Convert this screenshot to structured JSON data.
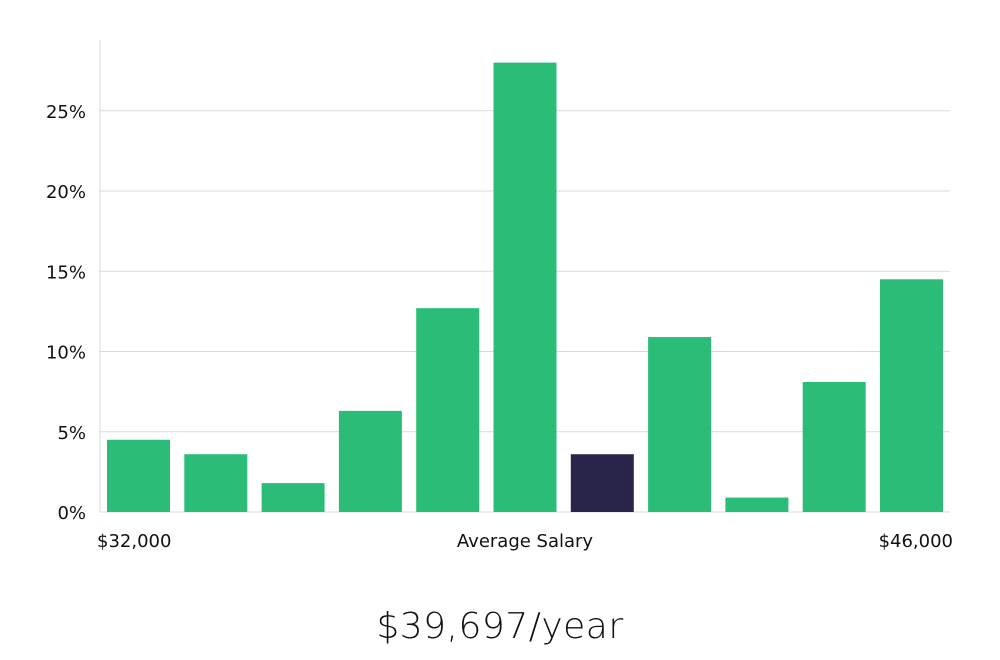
{
  "chart_data": {
    "type": "bar",
    "title": "",
    "xlabel": "Average Salary",
    "ylabel": "",
    "x_range_labels": {
      "min": "$32,000",
      "max": "$46,000"
    },
    "y_tick_labels": [
      "0%",
      "5%",
      "10%",
      "15%",
      "20%",
      "25%"
    ],
    "y_ticks": [
      0,
      5,
      10,
      15,
      20,
      25
    ],
    "ylim": [
      0,
      29.4
    ],
    "values": [
      4.5,
      3.6,
      1.8,
      6.3,
      12.7,
      28.0,
      3.6,
      10.9,
      0.9,
      8.1,
      14.5
    ],
    "highlight_index": 6,
    "colors": {
      "bar": "#2bbd78",
      "highlight": "#29254a",
      "grid": "#d9d9d9"
    }
  },
  "summary": {
    "salary_text": "$39,697/year"
  }
}
